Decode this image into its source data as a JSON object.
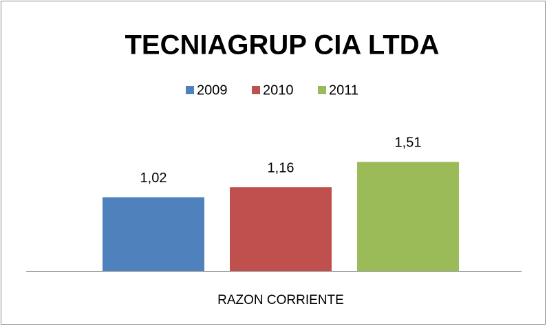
{
  "chart_data": {
    "type": "bar",
    "title": "TECNIAGRUP CIA LTDA",
    "categories": [
      "RAZON CORRIENTE"
    ],
    "series": [
      {
        "name": "2009",
        "color": "#4f81bd",
        "values": [
          1.02
        ],
        "value_labels": [
          "1,02"
        ]
      },
      {
        "name": "2010",
        "color": "#c0504d",
        "values": [
          1.16
        ],
        "value_labels": [
          "1,16"
        ]
      },
      {
        "name": "2011",
        "color": "#9bbb59",
        "values": [
          1.51
        ],
        "value_labels": [
          "1,51"
        ]
      }
    ],
    "ylim": [
      0,
      2
    ],
    "legend": "top"
  }
}
